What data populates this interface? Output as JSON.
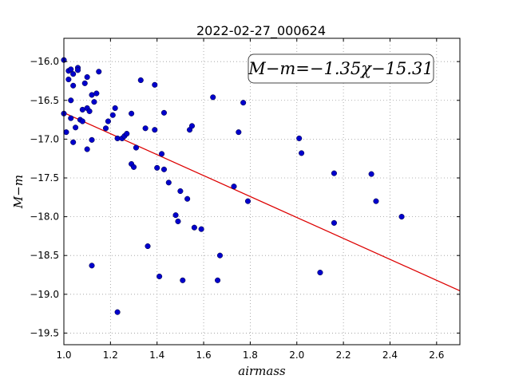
{
  "chart_data": {
    "type": "scatter",
    "title": "2022-02-27_000624",
    "xlabel": "airmass",
    "ylabel": "M−m",
    "xlim": [
      1.0,
      2.7
    ],
    "ylim": [
      -19.65,
      -15.7
    ],
    "y_inverted": false,
    "x_ticks": [
      1.0,
      1.2,
      1.4,
      1.6,
      1.8,
      2.0,
      2.2,
      2.4,
      2.6
    ],
    "x_tick_labels": [
      "1.0",
      "1.2",
      "1.4",
      "1.6",
      "1.8",
      "2.0",
      "2.2",
      "2.4",
      "2.6"
    ],
    "y_ticks": [
      -16.0,
      -16.5,
      -17.0,
      -17.5,
      -18.0,
      -18.5,
      -19.0,
      -19.5
    ],
    "y_tick_labels": [
      "−16.0",
      "−16.5",
      "−17.0",
      "−17.5",
      "−18.0",
      "−18.5",
      "−19.0",
      "−19.5"
    ],
    "grid": true,
    "annotation": "M−m=−1.35χ−15.31",
    "point_color": "#0000cc",
    "line_color": "#dd0000",
    "fit": {
      "slope": -1.35,
      "intercept": -15.31
    },
    "series": [
      {
        "points": [
          [
            1.0,
            -15.98
          ],
          [
            1.0,
            -16.67
          ],
          [
            1.01,
            -16.91
          ],
          [
            1.02,
            -16.12
          ],
          [
            1.02,
            -16.23
          ],
          [
            1.03,
            -16.1
          ],
          [
            1.03,
            -16.5
          ],
          [
            1.03,
            -16.73
          ],
          [
            1.04,
            -16.16
          ],
          [
            1.04,
            -16.31
          ],
          [
            1.04,
            -17.04
          ],
          [
            1.05,
            -16.85
          ],
          [
            1.06,
            -16.08
          ],
          [
            1.06,
            -16.11
          ],
          [
            1.07,
            -16.75
          ],
          [
            1.08,
            -16.77
          ],
          [
            1.08,
            -16.62
          ],
          [
            1.09,
            -16.28
          ],
          [
            1.1,
            -16.2
          ],
          [
            1.1,
            -16.6
          ],
          [
            1.1,
            -17.13
          ],
          [
            1.11,
            -16.64
          ],
          [
            1.12,
            -17.01
          ],
          [
            1.12,
            -16.43
          ],
          [
            1.13,
            -16.52
          ],
          [
            1.14,
            -16.41
          ],
          [
            1.15,
            -16.13
          ],
          [
            1.12,
            -18.63
          ],
          [
            1.18,
            -16.86
          ],
          [
            1.19,
            -16.77
          ],
          [
            1.21,
            -16.69
          ],
          [
            1.22,
            -16.6
          ],
          [
            1.23,
            -16.99
          ],
          [
            1.25,
            -16.99
          ],
          [
            1.26,
            -16.96
          ],
          [
            1.27,
            -16.93
          ],
          [
            1.29,
            -16.67
          ],
          [
            1.29,
            -17.32
          ],
          [
            1.3,
            -17.36
          ],
          [
            1.31,
            -17.11
          ],
          [
            1.33,
            -16.24
          ],
          [
            1.35,
            -16.86
          ],
          [
            1.36,
            -18.38
          ],
          [
            1.39,
            -16.88
          ],
          [
            1.39,
            -16.3
          ],
          [
            1.4,
            -17.37
          ],
          [
            1.42,
            -17.19
          ],
          [
            1.43,
            -17.39
          ],
          [
            1.43,
            -16.66
          ],
          [
            1.45,
            -17.56
          ],
          [
            1.48,
            -17.98
          ],
          [
            1.49,
            -18.06
          ],
          [
            1.5,
            -17.67
          ],
          [
            1.53,
            -17.77
          ],
          [
            1.54,
            -16.88
          ],
          [
            1.55,
            -16.83
          ],
          [
            1.56,
            -18.14
          ],
          [
            1.59,
            -18.16
          ],
          [
            1.41,
            -18.77
          ],
          [
            1.51,
            -18.82
          ],
          [
            1.23,
            -19.23
          ],
          [
            1.64,
            -16.46
          ],
          [
            1.66,
            -18.82
          ],
          [
            1.67,
            -18.5
          ],
          [
            1.73,
            -17.61
          ],
          [
            1.75,
            -16.91
          ],
          [
            1.77,
            -16.53
          ],
          [
            1.79,
            -17.8
          ],
          [
            2.01,
            -16.99
          ],
          [
            2.02,
            -17.18
          ],
          [
            2.1,
            -18.72
          ],
          [
            2.16,
            -17.44
          ],
          [
            2.16,
            -18.08
          ],
          [
            2.32,
            -17.45
          ],
          [
            2.34,
            -17.8
          ],
          [
            2.45,
            -18.0
          ]
        ]
      }
    ]
  }
}
